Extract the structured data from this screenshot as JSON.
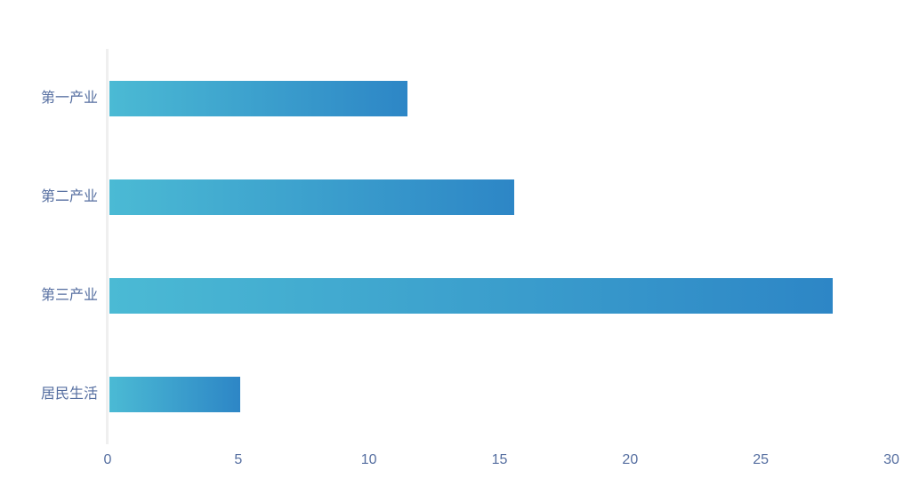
{
  "chart_data": {
    "type": "bar",
    "orientation": "horizontal",
    "title": "",
    "xlabel": "",
    "ylabel": "",
    "categories": [
      "第一产业",
      "第二产业",
      "第三产业",
      "居民生活"
    ],
    "values": [
      11.4,
      15.5,
      27.7,
      5
    ],
    "xlim": [
      0,
      30
    ],
    "x_ticks": [
      0,
      5,
      10,
      15,
      20,
      25,
      30
    ],
    "grid": false,
    "legend": null,
    "colors": {
      "bar_gradient_start": "#4bbad4",
      "bar_gradient_end": "#2d86c6",
      "label_color": "#556ea0",
      "axis_line_color": "#efefef",
      "background": "#ffffff"
    }
  },
  "layout_note": "horizontal bar chart, no gridlines, no title, no legend"
}
